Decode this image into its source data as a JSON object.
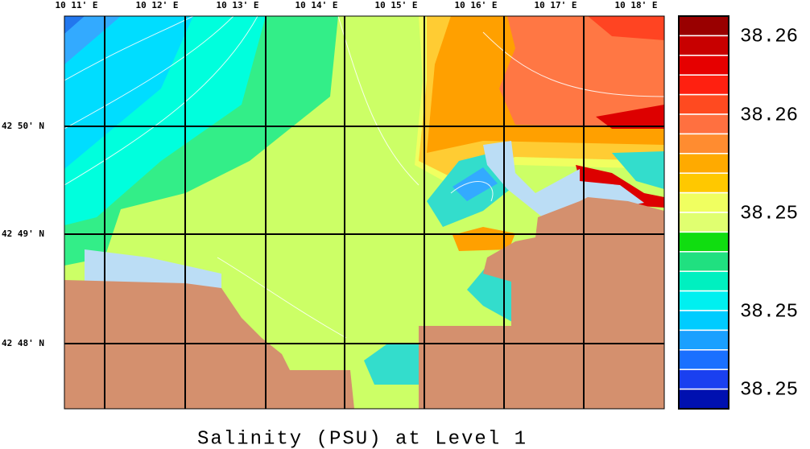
{
  "map": {
    "title": "Salinity (PSU) at Level 1",
    "longitude_labels": [
      "10 11' E",
      "10 12' E",
      "10 13' E",
      "10 14' E",
      "10 15' E",
      "10 16' E",
      "10 17' E",
      "10 18' E"
    ],
    "latitude_labels": [
      "42 50' N",
      "42 49' N",
      "42 48' N"
    ],
    "colorbar_labels": [
      "38.26",
      "38.26",
      "38.25",
      "38.25",
      "38.25"
    ],
    "colorbar_colors": [
      "#990000",
      "#c80000",
      "#e60000",
      "#ff2010",
      "#ff4a20",
      "#ff7040",
      "#ff8c30",
      "#ffaa00",
      "#ffc800",
      "#f0ff60",
      "#e0ff70",
      "#10dd10",
      "#20e080",
      "#00f0c0",
      "#00f0f0",
      "#00ccff",
      "#1aa0ff",
      "#1a70ff",
      "#1a40f0",
      "#0010b0"
    ]
  }
}
